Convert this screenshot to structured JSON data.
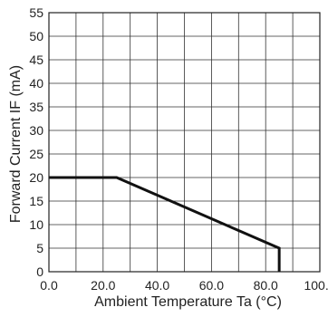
{
  "chart_data": {
    "type": "line",
    "title": "",
    "xlabel": "Ambient Temperature Ta (°C)",
    "ylabel": "Forward Current IF (mA)",
    "xlim": [
      0,
      100
    ],
    "ylim": [
      0,
      55
    ],
    "x_ticks": [
      0,
      20,
      40,
      60,
      80,
      100
    ],
    "x_tick_labels": [
      "0.0",
      "20.0",
      "40.0",
      "60.0",
      "80.0",
      "100.0"
    ],
    "y_ticks": [
      0,
      5,
      10,
      15,
      20,
      25,
      30,
      35,
      40,
      45,
      50,
      55
    ],
    "y_tick_labels": [
      "0",
      "5",
      "10",
      "15",
      "20",
      "25",
      "30",
      "35",
      "40",
      "45",
      "50",
      "55"
    ],
    "grid": true,
    "series": [
      {
        "x": [
          0,
          25,
          85,
          85
        ],
        "y": [
          20,
          20,
          5,
          0
        ],
        "color": "#111111"
      }
    ]
  }
}
